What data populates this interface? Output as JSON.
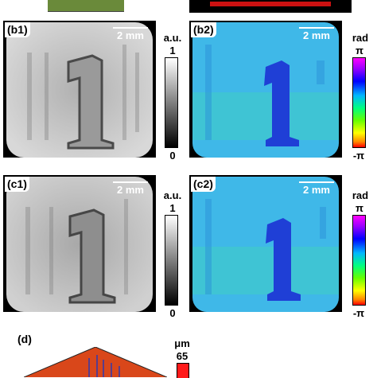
{
  "panels": {
    "b1": {
      "label": "(b1)",
      "scale": "2 mm"
    },
    "b2": {
      "label": "(b2)",
      "scale": "2 mm"
    },
    "c1": {
      "label": "(c1)",
      "scale": "2 mm"
    },
    "c2": {
      "label": "(c2)",
      "scale": "2 mm"
    },
    "d": {
      "label": "(d)"
    }
  },
  "amplitude_colorbar": {
    "unit": "a.u.",
    "max": "1",
    "min": "0"
  },
  "phase_colorbar": {
    "unit": "rad",
    "max": "π",
    "min": "-π"
  },
  "height_colorbar": {
    "unit": "μm",
    "max": "65"
  },
  "colors": {
    "phase_background": "#3fb8e8",
    "phase_feature": "#1f3fd6",
    "red_bar": "#cc1111",
    "thumbnail": "#6a8a3a"
  }
}
